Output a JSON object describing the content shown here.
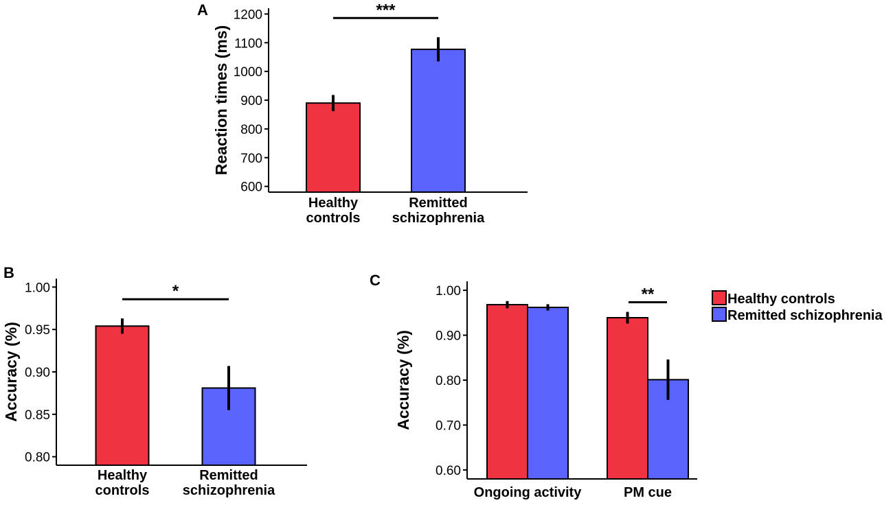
{
  "colors": {
    "healthy": "#ef3340",
    "remitted": "#5b63fd",
    "axis": "#000000"
  },
  "chart_data": [
    {
      "panel": "A",
      "type": "bar",
      "ylabel": "Reaction times (ms)",
      "ylim": [
        580,
        1220
      ],
      "yticks": [
        600,
        700,
        800,
        900,
        1000,
        1100,
        1200
      ],
      "categories": [
        [
          "Healthy",
          "controls"
        ],
        [
          "Remitted",
          "schizophrenia"
        ]
      ],
      "values": [
        890,
        1077
      ],
      "errors": [
        28,
        42
      ],
      "bar_colors": [
        "healthy",
        "remitted"
      ],
      "significance": {
        "from": 0,
        "to": 1,
        "label": "***"
      }
    },
    {
      "panel": "B",
      "type": "bar",
      "ylabel": "Accuracy (%)",
      "ylim": [
        0.79,
        1.01
      ],
      "yticks": [
        "0.80",
        "0.85",
        "0.90",
        "0.95",
        "1.00"
      ],
      "categories": [
        [
          "Healthy",
          "controls"
        ],
        [
          "Remitted",
          "schizophrenia"
        ]
      ],
      "values": [
        0.954,
        0.881
      ],
      "errors": [
        0.009,
        0.026
      ],
      "bar_colors": [
        "healthy",
        "remitted"
      ],
      "significance": {
        "from": 0,
        "to": 1,
        "label": "*"
      }
    },
    {
      "panel": "C",
      "type": "bar",
      "ylabel": "Accuracy (%)",
      "ylim": [
        0.58,
        1.02
      ],
      "yticks": [
        "0.60",
        "0.70",
        "0.80",
        "0.90",
        "1.00"
      ],
      "categories": [
        "Ongoing activity",
        "PM cue"
      ],
      "series": [
        {
          "name": "Healthy controls",
          "color": "healthy",
          "values": [
            0.968,
            0.939
          ],
          "errors": [
            0.008,
            0.013
          ]
        },
        {
          "name": "Remitted schizophrenia",
          "color": "remitted",
          "values": [
            0.962,
            0.801
          ],
          "errors": [
            0.007,
            0.045
          ]
        }
      ],
      "significance": {
        "group": 1,
        "label": "**"
      },
      "legend": [
        "Healthy controls",
        "Remitted schizophrenia"
      ]
    }
  ]
}
